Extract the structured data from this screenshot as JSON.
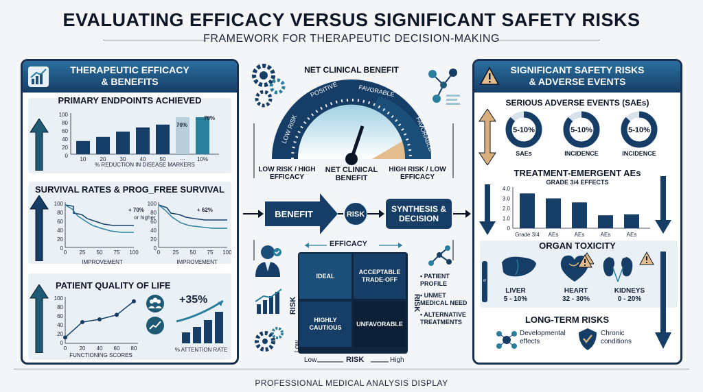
{
  "header": {
    "title": "EVALUATING EFFICACY VERSUS SIGNIFICANT SAFETY RISKS",
    "subtitle": "FRAMEWORK FOR THERAPEUTIC DECISION-MAKING"
  },
  "left_panel": {
    "title_line1": "THERAPEUTIC EFFICACY",
    "title_line2": "& BENEFITS",
    "endpoints": {
      "title": "PRIMARY ENDPOINTS ACHIEVED",
      "y_ticks": [
        "100",
        "80",
        "60",
        "40",
        "20",
        "0"
      ],
      "x_ticks": [
        "10",
        "20",
        "30",
        "40",
        "50",
        "···",
        "10%"
      ],
      "label_mid": "70%",
      "label_right": "70%",
      "caption": "% REDUCTION IN DISEASE MARKERS",
      "values": [
        32,
        42,
        55,
        65,
        72,
        90,
        90
      ]
    },
    "survival": {
      "title": "SURVIVAL RATES & PROG_FREE SURVIVAL",
      "left_stat": "+ 70%",
      "left_note": "or higher",
      "right_stat": "+ 62%",
      "y_ticks": [
        "100",
        "80",
        "60",
        "40",
        "20",
        "0"
      ],
      "x_ticks": [
        "0",
        "25",
        "50",
        "75",
        "100"
      ],
      "left_caption": "IMPROVEMENT",
      "right_caption": "IMPROVEMENT"
    },
    "qol": {
      "title": "PATIENT QUALITY OF LIFE",
      "y_ticks": [
        "100",
        "80",
        "60",
        "40",
        "20",
        "0"
      ],
      "x_ticks": [
        "0",
        "20",
        "40",
        "60",
        "80"
      ],
      "caption": "FUNCTIONING SCORES",
      "values": [
        13,
        47,
        53,
        63,
        93
      ],
      "stat": "+35%",
      "rate_caption": "% ATTENTION RATE"
    }
  },
  "center": {
    "gauge_title": "NET CLINICAL BENEFIT",
    "gauge_segments": [
      "LOW RISK",
      "POSITIVE",
      "FAVORABLE",
      "FAVORABLE"
    ],
    "gauge_left": "LOW RISK / HIGH EFFICACY",
    "gauge_center": "NET CLINICAL BENEFIT",
    "gauge_right": "HIGH RISK / LOW EFFICACY",
    "flow_benefit": "BENEFIT",
    "flow_risk": "RISK",
    "flow_synthesis": "SYNTHESIS & DECISION",
    "matrix_top": "EFFICACY",
    "matrix_ideal": "IDEAL",
    "matrix_acceptable": "ACCEPTABLE TRADE-OFF",
    "matrix_cautious": "HIGHLY CAUTIOUS",
    "matrix_unfavorable": "UNFAVORABLE",
    "axis_left": "RISK",
    "axis_right": "RISK",
    "axis_bottom": "RISK",
    "axis_low_left": "Low",
    "axis_low": "Low",
    "axis_high": "High",
    "factors": [
      "PATIENT PROFILE",
      "UNMET MEDICAL NEED",
      "ALTERNATIVE TREATMENTS"
    ]
  },
  "right_panel": {
    "title_line1": "SIGNIFICANT SAFETY RISKS",
    "title_line2": "& ADVERSE EVENTS",
    "sae": {
      "title": "SERIOUS ADVERSE EVENTS (SAEs)",
      "donuts": [
        {
          "value": "5-10%",
          "label": "SAEs"
        },
        {
          "value": "5-10%",
          "label": "INCIDENCE"
        },
        {
          "value": "5-10%",
          "label": "INCIDENCE"
        }
      ]
    },
    "teae": {
      "title": "TREATMENT-EMERGENT AEs",
      "subtitle": "GRADE 3/4 EFFECTS",
      "y_ticks": [
        "4.0",
        "3.0",
        "2.0",
        "1.0",
        "0"
      ],
      "categories": [
        "Grade 3/4",
        "AEs",
        "AEs",
        "AEs",
        "AEs"
      ],
      "values": [
        3.5,
        3.0,
        2.6,
        1.3,
        1.4
      ]
    },
    "organ": {
      "title": "ORGAN TOXICITY",
      "items": [
        {
          "name": "LIVER",
          "value": "5 - 10%"
        },
        {
          "name": "HEART",
          "value": "32 - 30%"
        },
        {
          "name": "KIDNEYS",
          "value": "0 - 20%"
        }
      ]
    },
    "longterm": {
      "title": "LONG-TERM RISKS",
      "item1_line1": "Developmental",
      "item1_line2": "effects",
      "item2_line1": "Chronic",
      "item2_line2": "conditions"
    }
  },
  "footer": {
    "text": "PROFESSIONAL MEDICAL ANALYSIS DISPLAY"
  },
  "colors": {
    "navy": "#163d66",
    "teal": "#2b7f9e",
    "tan": "#d9b07c",
    "dark": "#0d1626"
  }
}
